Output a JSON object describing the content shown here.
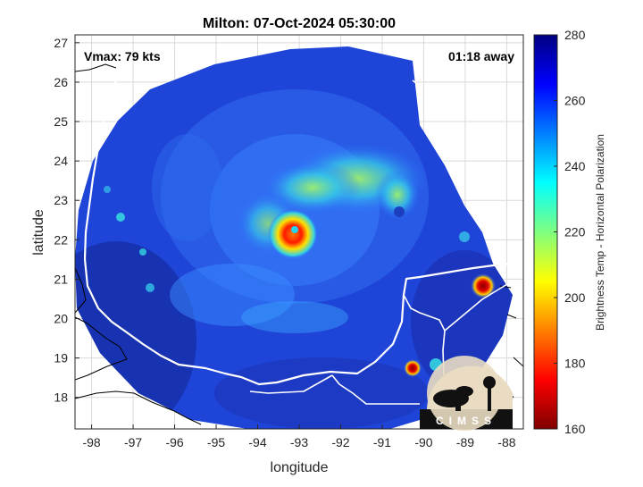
{
  "title": "Milton: 07-Oct-2024 05:30:00",
  "annotations": {
    "vmax": "Vmax: 79 kts",
    "timing": "01:18 away"
  },
  "logo_text": "CIMSS",
  "colors": {
    "cold_blue": "#1e3cc8",
    "deep_blue": "#141e8c",
    "land_outline": "#ffffff",
    "gridline": "#d9d9d9"
  },
  "chart_data": {
    "type": "heatmap",
    "xlabel": "longitude",
    "ylabel": "latitude",
    "xlim": [
      -98.4,
      -87.6
    ],
    "ylim": [
      17.2,
      27.2
    ],
    "x_ticks": [
      "-98",
      "-97",
      "-96",
      "-95",
      "-94",
      "-93",
      "-92",
      "-91",
      "-90",
      "-89",
      "-88"
    ],
    "x_tick_values": [
      -98,
      -97,
      -96,
      -95,
      -94,
      -93,
      -92,
      -91,
      -90,
      -89,
      -88
    ],
    "y_ticks": [
      "18",
      "19",
      "20",
      "21",
      "22",
      "23",
      "24",
      "25",
      "26",
      "27"
    ],
    "y_tick_values": [
      18,
      19,
      20,
      21,
      22,
      23,
      24,
      25,
      26,
      27
    ],
    "grid": true,
    "colorbar": {
      "label": "Brightness Temp - Horizontal Polarization",
      "min": 160,
      "max": 280,
      "ticks": [
        "160",
        "180",
        "200",
        "220",
        "240",
        "260",
        "280"
      ],
      "tick_values": [
        160,
        180,
        200,
        220,
        240,
        260,
        280
      ]
    },
    "storm_center": {
      "lon": -93.1,
      "lat": 22.2
    }
  }
}
